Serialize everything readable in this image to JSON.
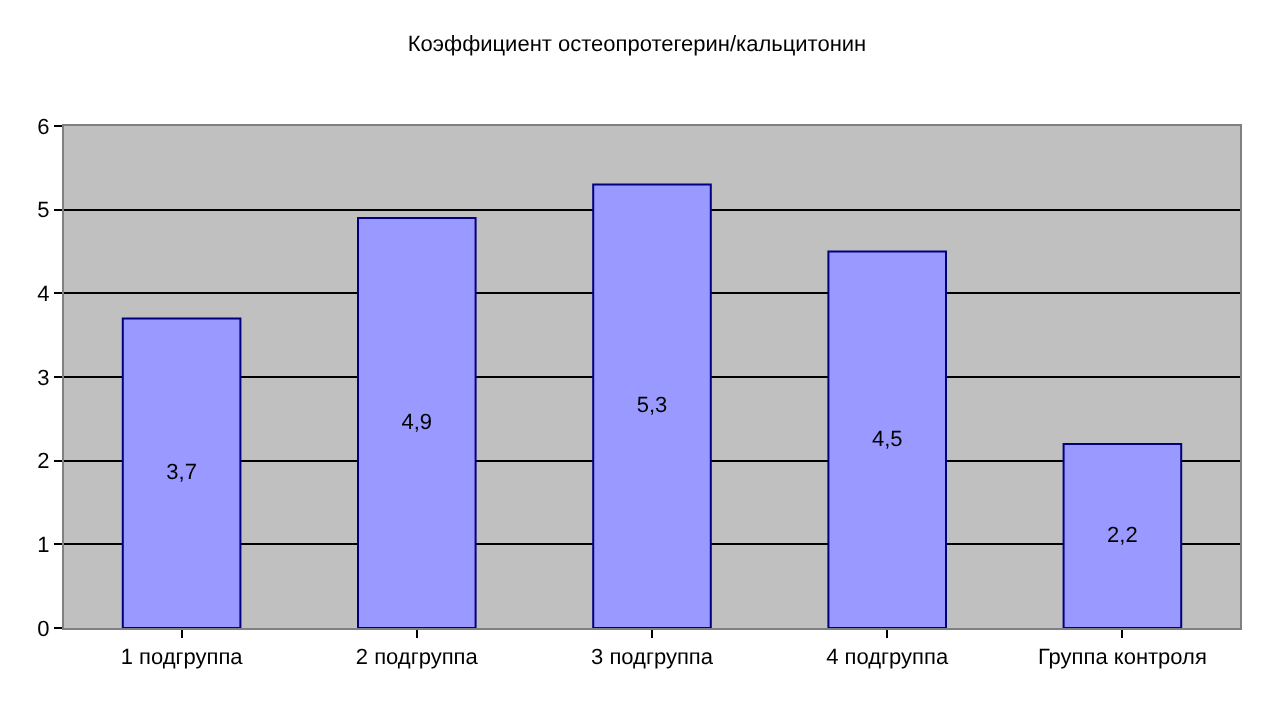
{
  "chart_data": {
    "type": "bar",
    "title": "Коэффициент остеопротегерин/кальцитонин",
    "categories": [
      "1 подгруппа",
      "2 подгруппа",
      "3 подгруппа",
      "4 подгруппа",
      "Группа контроля"
    ],
    "values": [
      3.7,
      4.9,
      5.3,
      4.5,
      2.2
    ],
    "value_labels": [
      "3,7",
      "4,9",
      "5,3",
      "4,5",
      "2,2"
    ],
    "color": "#9999ff",
    "ylim": [
      0,
      6
    ],
    "yticks": [
      0,
      1,
      2,
      3,
      4,
      5,
      6
    ],
    "grid": "y"
  }
}
